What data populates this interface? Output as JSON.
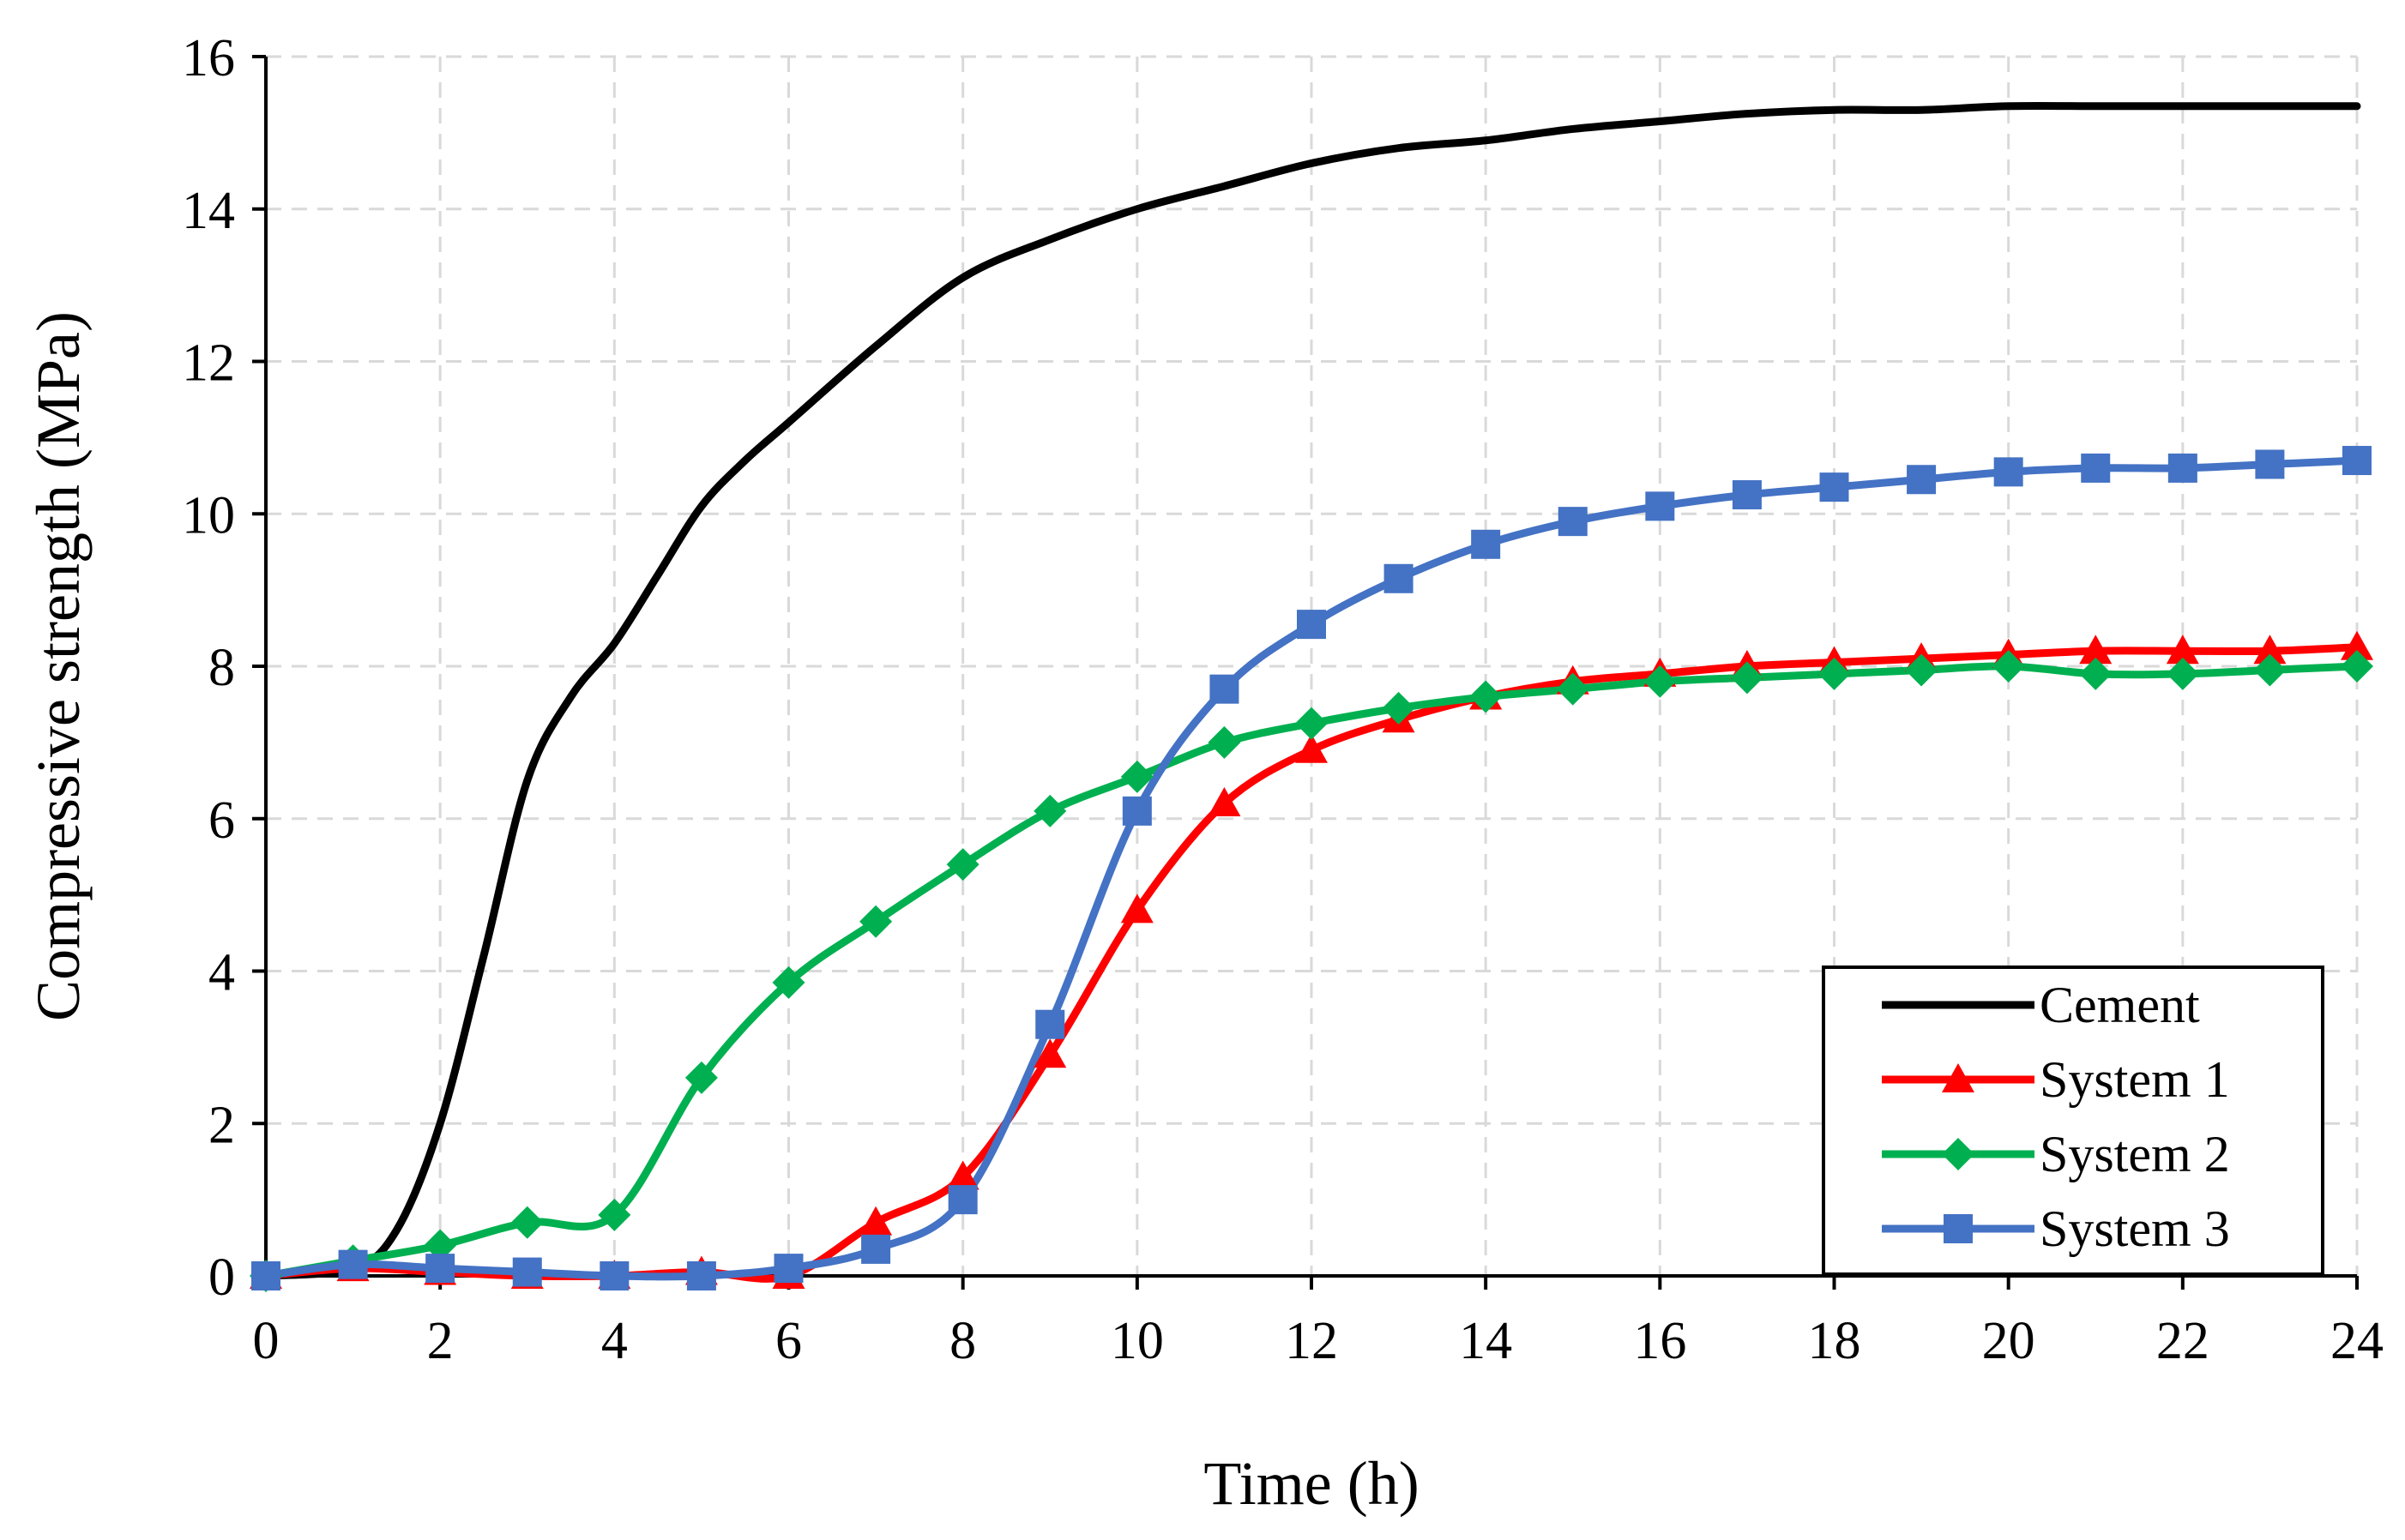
{
  "chart_data": {
    "type": "line",
    "title": "",
    "xlabel": "Time (h)",
    "ylabel": "Compressive strength (MPa)",
    "xlim": [
      0,
      24
    ],
    "ylim": [
      0,
      16
    ],
    "xticks": [
      0,
      2,
      4,
      6,
      8,
      10,
      12,
      14,
      16,
      18,
      20,
      22,
      24
    ],
    "yticks": [
      0,
      2,
      4,
      6,
      8,
      10,
      12,
      14,
      16
    ],
    "grid": true,
    "legend_position": "bottom-right",
    "series": [
      {
        "name": "Cement",
        "color": "#000000",
        "marker": "none",
        "points": [
          [
            0,
            0
          ],
          [
            1,
            0.1
          ],
          [
            1.5,
            0.6
          ],
          [
            2,
            2.0
          ],
          [
            2.5,
            4.2
          ],
          [
            3,
            6.5
          ],
          [
            3.5,
            7.6
          ],
          [
            4,
            8.3
          ],
          [
            4.5,
            9.2
          ],
          [
            5,
            10.1
          ],
          [
            5.5,
            10.7
          ],
          [
            6,
            11.2
          ],
          [
            7,
            12.2
          ],
          [
            8,
            13.1
          ],
          [
            9,
            13.6
          ],
          [
            10,
            14.0
          ],
          [
            11,
            14.3
          ],
          [
            12,
            14.6
          ],
          [
            13,
            14.8
          ],
          [
            14,
            14.9
          ],
          [
            15,
            15.05
          ],
          [
            16,
            15.15
          ],
          [
            17,
            15.25
          ],
          [
            18,
            15.3
          ],
          [
            19,
            15.3
          ],
          [
            20,
            15.35
          ],
          [
            21,
            15.35
          ],
          [
            22,
            15.35
          ],
          [
            23,
            15.35
          ],
          [
            24,
            15.35
          ]
        ]
      },
      {
        "name": "System 1",
        "color": "#ff0000",
        "marker": "triangle",
        "points": [
          [
            0,
            0
          ],
          [
            1,
            0.1
          ],
          [
            2,
            0.05
          ],
          [
            3,
            0
          ],
          [
            4,
            0
          ],
          [
            5,
            0.05
          ],
          [
            6,
            0
          ],
          [
            7,
            0.7
          ],
          [
            8,
            1.3
          ],
          [
            9,
            2.9
          ],
          [
            10,
            4.8
          ],
          [
            11,
            6.2
          ],
          [
            12,
            6.9
          ],
          [
            13,
            7.3
          ],
          [
            14,
            7.6
          ],
          [
            15,
            7.8
          ],
          [
            16,
            7.9
          ],
          [
            17,
            8.0
          ],
          [
            18,
            8.05
          ],
          [
            19,
            8.1
          ],
          [
            20,
            8.15
          ],
          [
            21,
            8.2
          ],
          [
            22,
            8.2
          ],
          [
            23,
            8.2
          ],
          [
            24,
            8.25
          ]
        ]
      },
      {
        "name": "System 2",
        "color": "#00b050",
        "marker": "diamond",
        "points": [
          [
            0,
            0
          ],
          [
            1,
            0.2
          ],
          [
            2,
            0.4
          ],
          [
            3,
            0.7
          ],
          [
            4,
            0.8
          ],
          [
            5,
            2.6
          ],
          [
            6,
            3.85
          ],
          [
            7,
            4.65
          ],
          [
            8,
            5.4
          ],
          [
            9,
            6.1
          ],
          [
            10,
            6.55
          ],
          [
            11,
            7.0
          ],
          [
            12,
            7.25
          ],
          [
            13,
            7.45
          ],
          [
            14,
            7.6
          ],
          [
            15,
            7.7
          ],
          [
            16,
            7.8
          ],
          [
            17,
            7.85
          ],
          [
            18,
            7.9
          ],
          [
            19,
            7.95
          ],
          [
            20,
            8.0
          ],
          [
            21,
            7.9
          ],
          [
            22,
            7.9
          ],
          [
            23,
            7.95
          ],
          [
            24,
            8.0
          ]
        ]
      },
      {
        "name": "System 3",
        "color": "#4472c4",
        "marker": "square",
        "points": [
          [
            0,
            0
          ],
          [
            1,
            0.15
          ],
          [
            2,
            0.1
          ],
          [
            3,
            0.05
          ],
          [
            4,
            0
          ],
          [
            5,
            0
          ],
          [
            6,
            0.1
          ],
          [
            7,
            0.35
          ],
          [
            8,
            1.0
          ],
          [
            9,
            3.3
          ],
          [
            10,
            6.1
          ],
          [
            11,
            7.7
          ],
          [
            12,
            8.55
          ],
          [
            13,
            9.15
          ],
          [
            14,
            9.6
          ],
          [
            15,
            9.9
          ],
          [
            16,
            10.1
          ],
          [
            17,
            10.25
          ],
          [
            18,
            10.35
          ],
          [
            19,
            10.45
          ],
          [
            20,
            10.55
          ],
          [
            21,
            10.6
          ],
          [
            22,
            10.6
          ],
          [
            23,
            10.65
          ],
          [
            24,
            10.7
          ]
        ]
      }
    ]
  }
}
